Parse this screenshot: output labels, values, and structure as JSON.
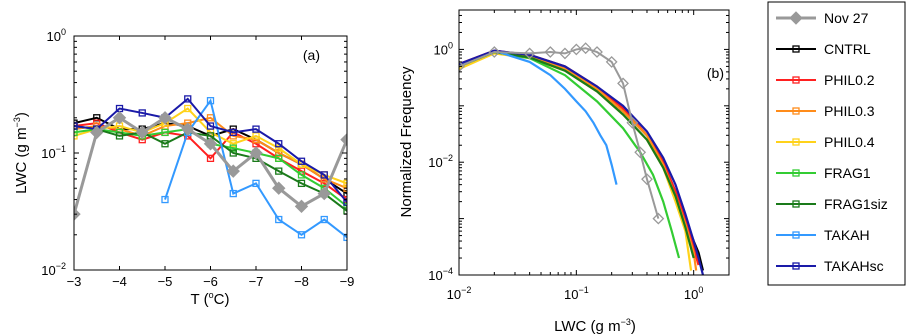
{
  "colors": {
    "Nov 27": "#999999",
    "CNTRL": "#000000",
    "PHIL0.2": "#ff2020",
    "PHIL0.3": "#ff8c1a",
    "PHIL0.4": "#ffd21a",
    "FRAG1": "#33cc33",
    "FRAG1siz": "#1a7a1a",
    "TAKAH": "#3399ff",
    "TAKAHsc": "#1a1aa8"
  },
  "legend": [
    "Nov 27",
    "CNTRL",
    "PHIL0.2",
    "PHIL0.3",
    "PHIL0.4",
    "FRAG1",
    "FRAG1siz",
    "TAKAH",
    "TAKAHsc"
  ],
  "chart_data": [
    {
      "type": "line",
      "panel_label": "(a)",
      "xlabel": "T (",
      "xlabel_sup": "o",
      "xlabel_end": "C)",
      "ylabel": "LWC (g m",
      "ylabel_sup": "−3",
      "ylabel_end": ")",
      "xlim": [
        -3,
        -9
      ],
      "ylim": [
        0.01,
        1
      ],
      "yscale": "log",
      "xticks": [
        "−3",
        "−4",
        "−5",
        "−6",
        "−7",
        "−8",
        "−9"
      ],
      "yticks": [
        {
          "base": "10",
          "exp": "−2",
          "v": 0.01
        },
        {
          "base": "10",
          "exp": "−1",
          "v": 0.1
        },
        {
          "base": "10",
          "exp": "0",
          "v": 1
        }
      ],
      "x": [
        -3,
        -3.5,
        -4,
        -4.5,
        -5,
        -5.5,
        -6,
        -6.5,
        -7,
        -7.5,
        -8,
        -8.5,
        -9
      ],
      "series": [
        {
          "name": "Nov 27",
          "values": [
            0.03,
            0.15,
            0.2,
            0.15,
            0.2,
            0.16,
            0.12,
            0.07,
            0.1,
            0.05,
            0.035,
            0.045,
            0.13
          ]
        },
        {
          "name": "CNTRL",
          "values": [
            0.18,
            0.2,
            0.16,
            0.16,
            0.18,
            0.17,
            0.14,
            0.16,
            0.13,
            0.1,
            0.08,
            0.06,
            0.045
          ]
        },
        {
          "name": "PHIL0.2",
          "values": [
            0.17,
            0.18,
            0.15,
            0.13,
            0.15,
            0.14,
            0.09,
            0.15,
            0.12,
            0.09,
            0.07,
            0.055,
            0.04
          ]
        },
        {
          "name": "PHIL0.3",
          "values": [
            0.16,
            0.17,
            0.16,
            0.14,
            0.17,
            0.18,
            0.2,
            0.14,
            0.13,
            0.1,
            0.08,
            0.06,
            0.05
          ]
        },
        {
          "name": "PHIL0.4",
          "values": [
            0.14,
            0.16,
            0.17,
            0.15,
            0.18,
            0.24,
            0.15,
            0.12,
            0.14,
            0.11,
            0.08,
            0.065,
            0.055
          ]
        },
        {
          "name": "FRAG1",
          "values": [
            0.15,
            0.16,
            0.15,
            0.14,
            0.15,
            0.16,
            0.12,
            0.11,
            0.1,
            0.09,
            0.065,
            0.05,
            0.035
          ]
        },
        {
          "name": "FRAG1siz",
          "values": [
            0.17,
            0.16,
            0.14,
            0.15,
            0.12,
            0.15,
            0.14,
            0.1,
            0.09,
            0.07,
            0.055,
            0.045,
            0.032
          ]
        },
        {
          "name": "TAKAH",
          "values": [
            null,
            null,
            null,
            null,
            0.04,
            0.15,
            0.28,
            0.045,
            0.055,
            0.027,
            0.02,
            0.027,
            0.019
          ]
        },
        {
          "name": "TAKAHsc",
          "values": [
            0.17,
            0.16,
            0.24,
            0.22,
            0.2,
            0.29,
            0.17,
            0.15,
            0.16,
            0.12,
            0.085,
            0.065,
            0.038
          ]
        }
      ]
    },
    {
      "type": "line",
      "panel_label": "(b)",
      "xlabel": "LWC (g m",
      "xlabel_sup": "−3",
      "xlabel_end": ")",
      "ylabel": "Normalized Frequency",
      "xscale": "log",
      "yscale": "log",
      "xlim": [
        0.01,
        2
      ],
      "ylim": [
        0.0001,
        5
      ],
      "xticks": [
        {
          "base": "10",
          "exp": "−2",
          "v": 0.01
        },
        {
          "base": "10",
          "exp": "−1",
          "v": 0.1
        },
        {
          "base": "10",
          "exp": "0",
          "v": 1
        }
      ],
      "yticks": [
        {
          "base": "10",
          "exp": "−4",
          "v": 0.0001
        },
        {
          "base": "10",
          "exp": "−2",
          "v": 0.01
        },
        {
          "base": "10",
          "exp": "0",
          "v": 1
        }
      ],
      "series": [
        {
          "name": "CNTRL",
          "x": [
            0.01,
            0.02,
            0.04,
            0.08,
            0.15,
            0.25,
            0.4,
            0.55,
            0.7,
            0.85,
            1.0,
            1.1,
            1.2
          ],
          "values": [
            0.5,
            0.9,
            0.75,
            0.45,
            0.2,
            0.08,
            0.03,
            0.01,
            0.003,
            0.001,
            0.0004,
            0.00025,
            0.00012
          ]
        },
        {
          "name": "PHIL0.2",
          "x": [
            0.01,
            0.02,
            0.04,
            0.08,
            0.15,
            0.25,
            0.4,
            0.55,
            0.7,
            0.85,
            1.0,
            1.1
          ],
          "values": [
            0.55,
            0.95,
            0.8,
            0.5,
            0.22,
            0.09,
            0.03,
            0.01,
            0.003,
            0.001,
            0.0003,
            0.00015
          ]
        },
        {
          "name": "PHIL0.3",
          "x": [
            0.01,
            0.02,
            0.04,
            0.08,
            0.15,
            0.25,
            0.4,
            0.55,
            0.7,
            0.85,
            1.0,
            1.05
          ],
          "values": [
            0.5,
            0.9,
            0.75,
            0.45,
            0.2,
            0.08,
            0.03,
            0.009,
            0.0025,
            0.0008,
            0.00025,
            0.00012
          ]
        },
        {
          "name": "PHIL0.4",
          "x": [
            0.01,
            0.02,
            0.04,
            0.08,
            0.15,
            0.25,
            0.4,
            0.55,
            0.7,
            0.85,
            0.95
          ],
          "values": [
            0.45,
            0.85,
            0.7,
            0.42,
            0.18,
            0.07,
            0.025,
            0.008,
            0.002,
            0.0006,
            0.00012
          ]
        },
        {
          "name": "FRAG1",
          "x": [
            0.01,
            0.02,
            0.04,
            0.08,
            0.15,
            0.25,
            0.35,
            0.45,
            0.55,
            0.65,
            0.75
          ],
          "values": [
            0.5,
            0.9,
            0.7,
            0.35,
            0.12,
            0.04,
            0.015,
            0.006,
            0.002,
            0.0006,
            0.0002
          ]
        },
        {
          "name": "FRAG1siz",
          "x": [
            0.01,
            0.02,
            0.04,
            0.08,
            0.15,
            0.25,
            0.4,
            0.55,
            0.7,
            0.85,
            1.0
          ],
          "values": [
            0.5,
            0.9,
            0.72,
            0.42,
            0.18,
            0.07,
            0.025,
            0.008,
            0.0025,
            0.0007,
            0.0002
          ]
        },
        {
          "name": "TAKAH",
          "x": [
            0.01,
            0.02,
            0.04,
            0.06,
            0.08,
            0.1,
            0.12,
            0.14,
            0.16,
            0.18,
            0.2,
            0.22
          ],
          "values": [
            0.5,
            0.95,
            0.6,
            0.35,
            0.2,
            0.12,
            0.08,
            0.05,
            0.03,
            0.02,
            0.009,
            0.004
          ]
        },
        {
          "name": "TAKAHsc",
          "x": [
            0.01,
            0.02,
            0.04,
            0.08,
            0.15,
            0.25,
            0.4,
            0.55,
            0.7,
            0.85,
            1.0,
            1.1,
            1.2
          ],
          "values": [
            0.55,
            0.95,
            0.8,
            0.5,
            0.22,
            0.1,
            0.035,
            0.012,
            0.004,
            0.0012,
            0.0004,
            0.0002,
            0.0001
          ]
        },
        {
          "name": "Nov 27",
          "x": [
            0.01,
            0.02,
            0.04,
            0.06,
            0.08,
            0.1,
            0.12,
            0.15,
            0.2,
            0.25,
            0.3,
            0.35,
            0.4,
            0.5
          ],
          "values": [
            0.5,
            0.9,
            0.85,
            0.9,
            0.85,
            1.0,
            1.05,
            0.9,
            0.6,
            0.25,
            0.05,
            0.015,
            0.005,
            0.001
          ]
        }
      ]
    }
  ]
}
